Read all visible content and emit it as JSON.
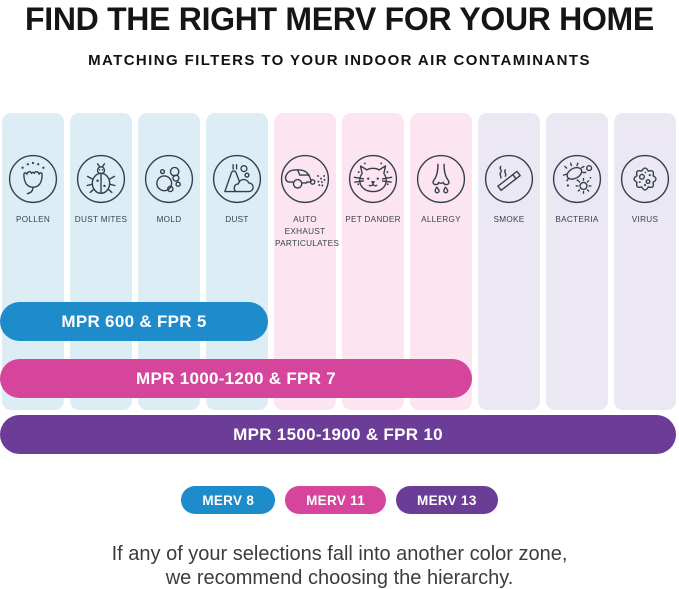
{
  "header": {
    "title": "FIND THE RIGHT MERV FOR YOUR HOME",
    "subtitle": "MATCHING FILTERS TO YOUR INDOOR AIR CONTAMINANTS"
  },
  "zone_colors": {
    "blue": "#ddedf6",
    "pink": "#fce5f0",
    "lavender": "#ebe7f3"
  },
  "icon_stroke_color": "#333f4d",
  "columns": [
    {
      "label": "POLLEN",
      "icon": "pollen-icon",
      "zone": "blue"
    },
    {
      "label": "DUST MITES",
      "icon": "dust-mite-icon",
      "zone": "blue"
    },
    {
      "label": "MOLD",
      "icon": "mold-icon",
      "zone": "blue"
    },
    {
      "label": "DUST",
      "icon": "dust-icon",
      "zone": "blue"
    },
    {
      "label": "AUTO EXHAUST PARTICULATES",
      "icon": "car-exhaust-icon",
      "zone": "pink"
    },
    {
      "label": "PET DANDER",
      "icon": "cat-icon",
      "zone": "pink"
    },
    {
      "label": "ALLERGY",
      "icon": "nose-icon",
      "zone": "pink"
    },
    {
      "label": "SMOKE",
      "icon": "cigarette-icon",
      "zone": "lavender"
    },
    {
      "label": "BACTERIA",
      "icon": "bacteria-icon",
      "zone": "lavender"
    },
    {
      "label": "VIRUS",
      "icon": "virus-icon",
      "zone": "lavender"
    }
  ],
  "bars": [
    {
      "label": "MPR 600 & FPR 5",
      "color": "#1e8bca",
      "span_columns": 4
    },
    {
      "label": "MPR 1000-1200 & FPR 7",
      "color": "#d5459c",
      "span_columns": 7
    },
    {
      "label": "MPR 1500-1900 & FPR 10",
      "color": "#6b3d96",
      "span_columns": 10
    }
  ],
  "legend": [
    {
      "label": "MERV 8",
      "color": "#1e8bca"
    },
    {
      "label": "MERV 11",
      "color": "#d5459c"
    },
    {
      "label": "MERV 13",
      "color": "#6b3d96"
    }
  ],
  "footer": {
    "line1": "If any of your selections fall into another color zone,",
    "line2": "we recommend choosing the hierarchy."
  }
}
